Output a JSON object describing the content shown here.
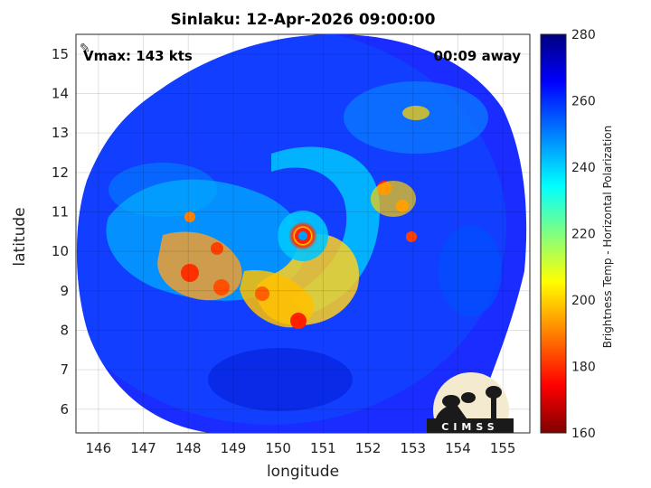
{
  "title": "Sinlaku: 12-Apr-2026 09:00:00",
  "vmax": "Vmax: 143 kts",
  "away": "00:09 away",
  "xlabel": "longitude",
  "ylabel": "latitude",
  "colorbar_label": "Brightness Temp - Horizontal Polarization",
  "logo_text": "CIMSS",
  "map": {
    "lon_range": [
      145.5,
      155.6
    ],
    "lat_range": [
      5.4,
      15.5
    ],
    "x_ticks": [
      "146",
      "147",
      "148",
      "149",
      "150",
      "151",
      "152",
      "153",
      "154",
      "155"
    ],
    "y_ticks": [
      "6",
      "7",
      "8",
      "9",
      "10",
      "11",
      "12",
      "13",
      "14",
      "15"
    ],
    "center_lon": 150.5,
    "center_lat": 10.45,
    "grid": true
  },
  "colorbar": {
    "min": 160,
    "max": 280,
    "ticks": [
      "160",
      "180",
      "200",
      "220",
      "240",
      "260",
      "280"
    ],
    "colors": [
      "#800000",
      "#ff0000",
      "#ff8000",
      "#ffff00",
      "#80ff80",
      "#00ffff",
      "#0080ff",
      "#0000ff",
      "#000080"
    ]
  }
}
